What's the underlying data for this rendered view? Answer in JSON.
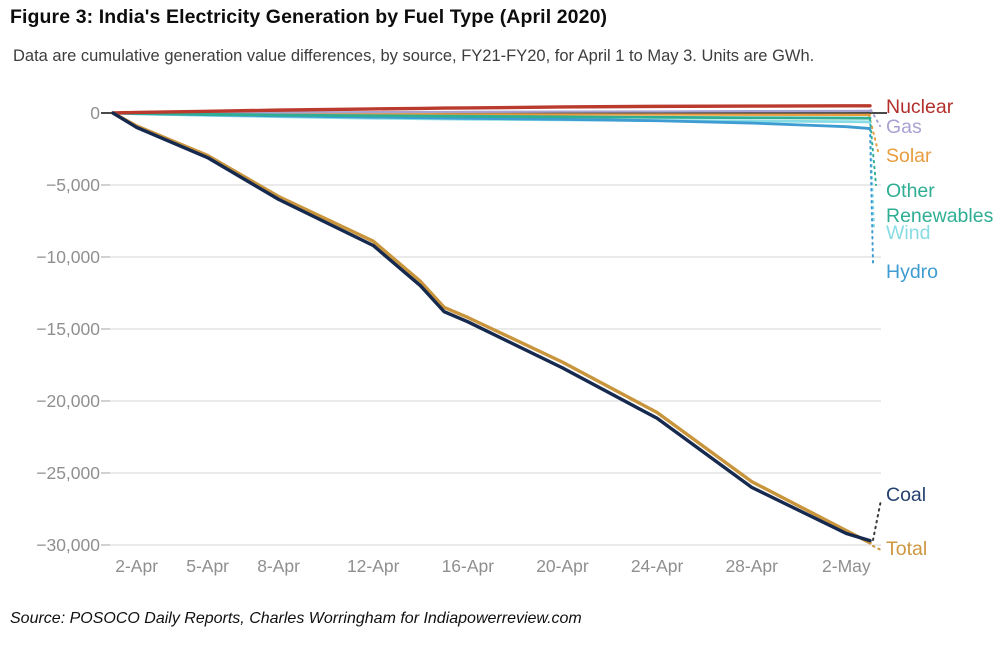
{
  "figure": {
    "title": "Figure 3: India's Electricity Generation by Fuel Type (April 2020)",
    "subtitle": "Data are cumulative generation value differences, by source, FY21-FY20, for April 1 to May 3. Units are GWh.",
    "source": "Source: POSOCO Daily Reports, Charles Worringham for Indiapowerreview.com"
  },
  "chart_data": {
    "type": "line",
    "title": "India's Electricity Generation by Fuel Type (April 2020)",
    "units": "GWh",
    "xlabel": "",
    "ylabel": "",
    "grid": true,
    "legend_position": "right",
    "x_domain_days": [
      0,
      32
    ],
    "x_start_date": "1-Apr",
    "x_end_date": "3-May",
    "x_days_from_apr1": [
      0,
      1,
      4,
      7,
      11,
      13,
      14,
      15,
      19,
      23,
      27,
      31,
      32
    ],
    "x_ticks": [
      {
        "day": 1,
        "label": "2-Apr"
      },
      {
        "day": 4,
        "label": "5-Apr"
      },
      {
        "day": 7,
        "label": "8-Apr"
      },
      {
        "day": 11,
        "label": "12-Apr"
      },
      {
        "day": 15,
        "label": "16-Apr"
      },
      {
        "day": 19,
        "label": "20-Apr"
      },
      {
        "day": 23,
        "label": "24-Apr"
      },
      {
        "day": 27,
        "label": "28-Apr"
      },
      {
        "day": 31,
        "label": "2-May"
      }
    ],
    "y_ticks": [
      {
        "value": 0,
        "label": "0"
      },
      {
        "value": -5000,
        "label": "−5,000"
      },
      {
        "value": -10000,
        "label": "−10,000"
      },
      {
        "value": -15000,
        "label": "−15,000"
      },
      {
        "value": -20000,
        "label": "−20,000"
      },
      {
        "value": -25000,
        "label": "−25,000"
      },
      {
        "value": -30000,
        "label": "−30,000"
      }
    ],
    "ylim": [
      -31000,
      1500
    ],
    "zero_line_color": "#4a4a4a",
    "grid_color": "#e4e4e4",
    "axis_text_color": "#8f8f8f",
    "series": [
      {
        "id": "solar",
        "name": "Solar",
        "color": "#e89c3e",
        "values": [
          0,
          -10,
          -30,
          -50,
          -70,
          -80,
          -85,
          -90,
          -100,
          -110,
          -120,
          -130,
          -130
        ]
      },
      {
        "id": "gas",
        "name": "Gas",
        "color": "#a8a2d3",
        "values": [
          0,
          10,
          30,
          40,
          60,
          70,
          75,
          80,
          100,
          110,
          130,
          140,
          150
        ]
      },
      {
        "id": "wind",
        "name": "Wind",
        "color": "#87dce4",
        "values": [
          0,
          -60,
          -160,
          -260,
          -360,
          -400,
          -415,
          -430,
          -480,
          -520,
          -560,
          -600,
          -620
        ]
      },
      {
        "id": "hydro",
        "name": "Hydro",
        "color": "#3f9cd2",
        "values": [
          0,
          -40,
          -120,
          -200,
          -290,
          -330,
          -350,
          -370,
          -440,
          -540,
          -700,
          -950,
          -1080
        ]
      },
      {
        "id": "other-renewables",
        "name": "Other Renewables",
        "label_lines": [
          "Other",
          "Renewables"
        ],
        "color": "#2fae94",
        "values": [
          0,
          -30,
          -90,
          -140,
          -190,
          -210,
          -220,
          -230,
          -270,
          -300,
          -330,
          -350,
          -360
        ]
      },
      {
        "id": "nuclear",
        "name": "Nuclear",
        "color": "#bb3a2e",
        "label_color": "#b22f2c",
        "values": [
          0,
          40,
          120,
          200,
          280,
          320,
          340,
          350,
          420,
          460,
          480,
          500,
          500
        ]
      },
      {
        "id": "total",
        "name": "Total",
        "color": "#c9953c",
        "label_color": "#ce9740",
        "values": [
          0,
          -900,
          -2950,
          -5800,
          -8900,
          -11700,
          -13500,
          -14200,
          -17300,
          -20800,
          -25600,
          -29000,
          -29850
        ]
      },
      {
        "id": "coal",
        "name": "Coal",
        "color": "#16294e",
        "label_color": "#24406e",
        "values": [
          0,
          -1000,
          -3100,
          -6000,
          -9200,
          -12000,
          -13800,
          -14500,
          -17700,
          -21200,
          -26000,
          -29200,
          -29700
        ]
      }
    ]
  }
}
